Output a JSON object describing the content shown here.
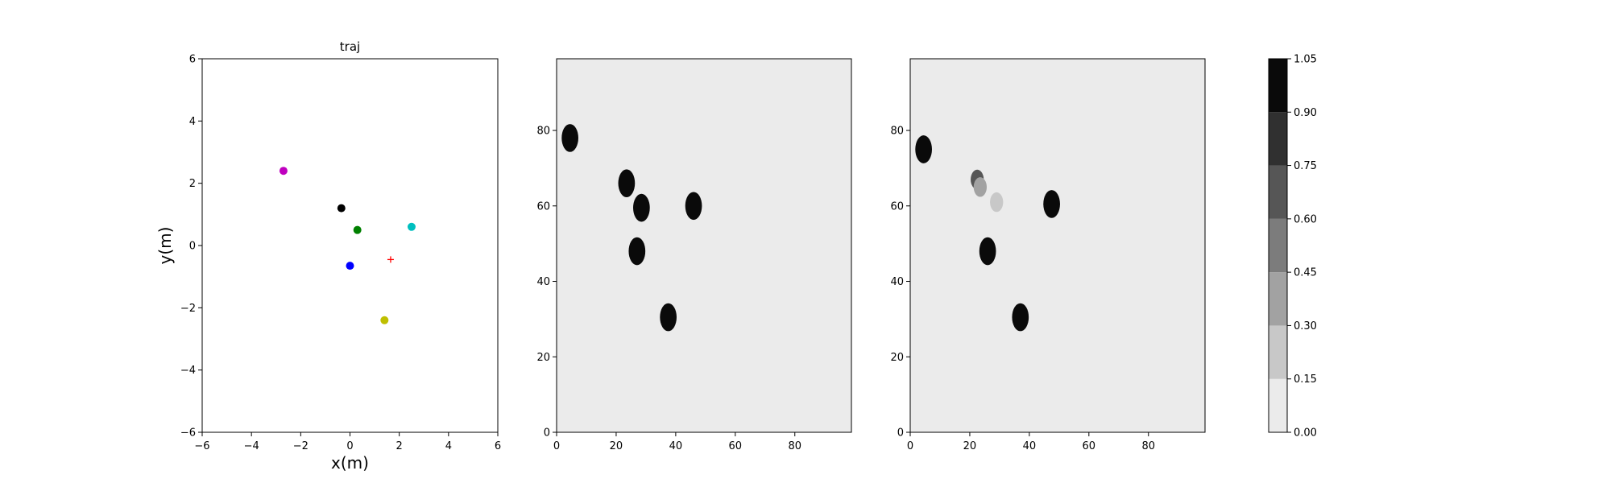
{
  "chart_data": [
    {
      "type": "scatter",
      "title": "traj",
      "xlabel": "x(m)",
      "ylabel": "y(m)",
      "xlim": [
        -6,
        6
      ],
      "ylim": [
        -6,
        6
      ],
      "xticks": [
        "−6",
        "−4",
        "−2",
        "0",
        "2",
        "4",
        "6"
      ],
      "yticks": [
        "−6",
        "−4",
        "−2",
        "0",
        "2",
        "4",
        "6"
      ],
      "grid": false,
      "points": [
        {
          "x": -2.7,
          "y": 2.4,
          "color": "#bf00bf",
          "marker": "circle"
        },
        {
          "x": -0.35,
          "y": 1.2,
          "color": "#000000",
          "marker": "circle"
        },
        {
          "x": 0.3,
          "y": 0.5,
          "color": "#008000",
          "marker": "circle"
        },
        {
          "x": 2.5,
          "y": 0.6,
          "color": "#00bfbf",
          "marker": "circle"
        },
        {
          "x": 0.0,
          "y": -0.65,
          "color": "#0000ff",
          "marker": "circle"
        },
        {
          "x": 1.4,
          "y": -2.4,
          "color": "#bfbf00",
          "marker": "circle"
        },
        {
          "x": 1.65,
          "y": -0.45,
          "color": "#ff0000",
          "marker": "plus"
        }
      ]
    },
    {
      "type": "heatmap",
      "xlim": [
        0,
        99
      ],
      "ylim": [
        0,
        99
      ],
      "xticks": [
        "0",
        "20",
        "40",
        "60",
        "80"
      ],
      "yticks": [
        "0",
        "20",
        "40",
        "60",
        "80"
      ],
      "background_value": 0.0,
      "blobs": [
        {
          "x": 4.5,
          "y": 78,
          "value": 1.0
        },
        {
          "x": 23.5,
          "y": 66,
          "value": 1.0
        },
        {
          "x": 28.5,
          "y": 59.5,
          "value": 1.0
        },
        {
          "x": 27,
          "y": 48,
          "value": 1.0
        },
        {
          "x": 46,
          "y": 60,
          "value": 1.0
        },
        {
          "x": 37.5,
          "y": 30.5,
          "value": 1.0
        }
      ]
    },
    {
      "type": "heatmap",
      "xlim": [
        0,
        99
      ],
      "ylim": [
        0,
        99
      ],
      "xticks": [
        "0",
        "20",
        "40",
        "60",
        "80"
      ],
      "yticks": [
        "0",
        "20",
        "40",
        "60",
        "80"
      ],
      "background_value": 0.0,
      "blobs": [
        {
          "x": 4.5,
          "y": 75,
          "value": 1.0
        },
        {
          "x": 22.5,
          "y": 67,
          "value": 0.6
        },
        {
          "x": 23.5,
          "y": 65,
          "value": 0.3
        },
        {
          "x": 29,
          "y": 61,
          "value": 0.2
        },
        {
          "x": 26,
          "y": 48,
          "value": 1.0
        },
        {
          "x": 47.5,
          "y": 60.5,
          "value": 1.0
        },
        {
          "x": 37,
          "y": 30.5,
          "value": 1.0
        }
      ]
    }
  ],
  "colorbar": {
    "levels": [
      0.0,
      0.15,
      0.3,
      0.45,
      0.6,
      0.75,
      0.9,
      1.05
    ],
    "tick_labels": [
      "0.00",
      "0.15",
      "0.30",
      "0.45",
      "0.60",
      "0.75",
      "0.90",
      "1.05"
    ],
    "colors": [
      "#ebebeb",
      "#c8c8c8",
      "#a2a2a2",
      "#7c7c7c",
      "#565656",
      "#303030",
      "#0a0a0a"
    ]
  }
}
